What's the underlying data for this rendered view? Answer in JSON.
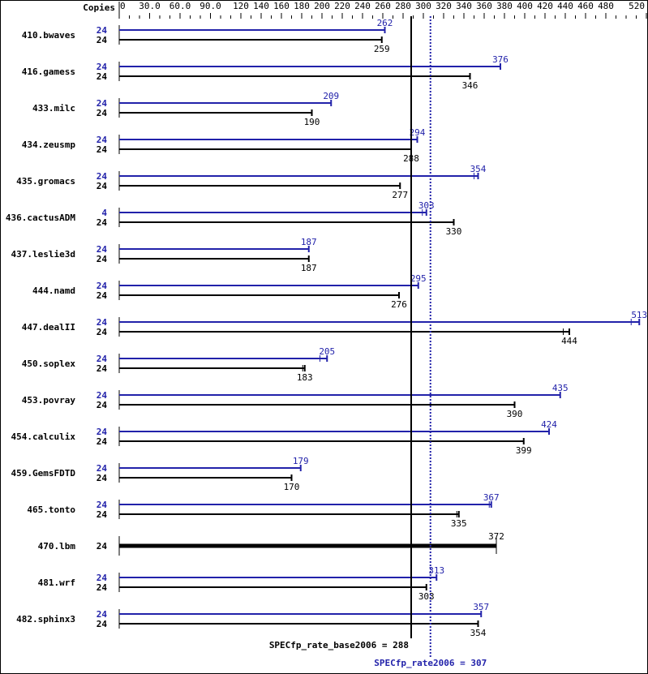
{
  "chart_data": {
    "type": "bar",
    "orientation": "horizontal",
    "header_label": "Copies",
    "tick_labels": [
      "0",
      "30.0",
      "60.0",
      "90.0",
      "120",
      "140",
      "160",
      "180",
      "200",
      "220",
      "240",
      "260",
      "280",
      "300",
      "320",
      "340",
      "360",
      "380",
      "400",
      "420",
      "440",
      "460",
      "480",
      "520"
    ],
    "tick_values": [
      0,
      30,
      60,
      90,
      120,
      140,
      160,
      180,
      200,
      220,
      240,
      260,
      280,
      300,
      320,
      340,
      360,
      380,
      400,
      420,
      440,
      460,
      480,
      520
    ],
    "xlim": [
      0,
      520
    ],
    "colors": {
      "peak": "#2222aa",
      "base": "#000000"
    },
    "series_roles": [
      "peak",
      "base"
    ],
    "benchmarks": [
      {
        "name": "410.bwaves",
        "peak_copies": "24",
        "peak": 262,
        "base_copies": "24",
        "base": 259
      },
      {
        "name": "416.gamess",
        "peak_copies": "24",
        "peak": 376,
        "base_copies": "24",
        "base": 346
      },
      {
        "name": "433.milc",
        "peak_copies": "24",
        "peak": 209,
        "base_copies": "24",
        "base": 190
      },
      {
        "name": "434.zeusmp",
        "peak_copies": "24",
        "peak": 294,
        "base_copies": "24",
        "base": 288
      },
      {
        "name": "435.gromacs",
        "peak_copies": "24",
        "peak": 354,
        "peak_low": 350,
        "base_copies": "24",
        "base": 277
      },
      {
        "name": "436.cactusADM",
        "peak_copies": "4",
        "peak": 303,
        "peak_low": 299,
        "base_copies": "24",
        "base": 330
      },
      {
        "name": "437.leslie3d",
        "peak_copies": "24",
        "peak": 187,
        "base_copies": "24",
        "base": 187
      },
      {
        "name": "444.namd",
        "peak_copies": "24",
        "peak": 295,
        "base_copies": "24",
        "base": 276
      },
      {
        "name": "447.dealII",
        "peak_copies": "24",
        "peak": 513,
        "peak_low": 505,
        "base_copies": "24",
        "base": 444,
        "base_low": 438
      },
      {
        "name": "450.soplex",
        "peak_copies": "24",
        "peak": 205,
        "peak_low": 198,
        "base_copies": "24",
        "base": 183,
        "base_low": 181
      },
      {
        "name": "453.povray",
        "peak_copies": "24",
        "peak": 435,
        "base_copies": "24",
        "base": 390
      },
      {
        "name": "454.calculix",
        "peak_copies": "24",
        "peak": 424,
        "base_copies": "24",
        "base": 399
      },
      {
        "name": "459.GemsFDTD",
        "peak_copies": "24",
        "peak": 179,
        "base_copies": "24",
        "base": 170
      },
      {
        "name": "465.tonto",
        "peak_copies": "24",
        "peak": 367,
        "peak_low": 365,
        "base_copies": "24",
        "base": 335,
        "base_low": 333
      },
      {
        "name": "470.lbm",
        "peak_copies": null,
        "peak": null,
        "base_copies": "24",
        "base": 372
      },
      {
        "name": "481.wrf",
        "peak_copies": "24",
        "peak": 313,
        "base_copies": "24",
        "base": 303
      },
      {
        "name": "482.sphinx3",
        "peak_copies": "24",
        "peak": 357,
        "base_copies": "24",
        "base": 354
      }
    ],
    "reference_lines": [
      {
        "role": "base",
        "value": 288,
        "label": "SPECfp_rate_base2006 = 288",
        "style": "solid"
      },
      {
        "role": "peak",
        "value": 307,
        "label": "SPECfp_rate2006 = 307",
        "style": "dotted"
      }
    ]
  }
}
